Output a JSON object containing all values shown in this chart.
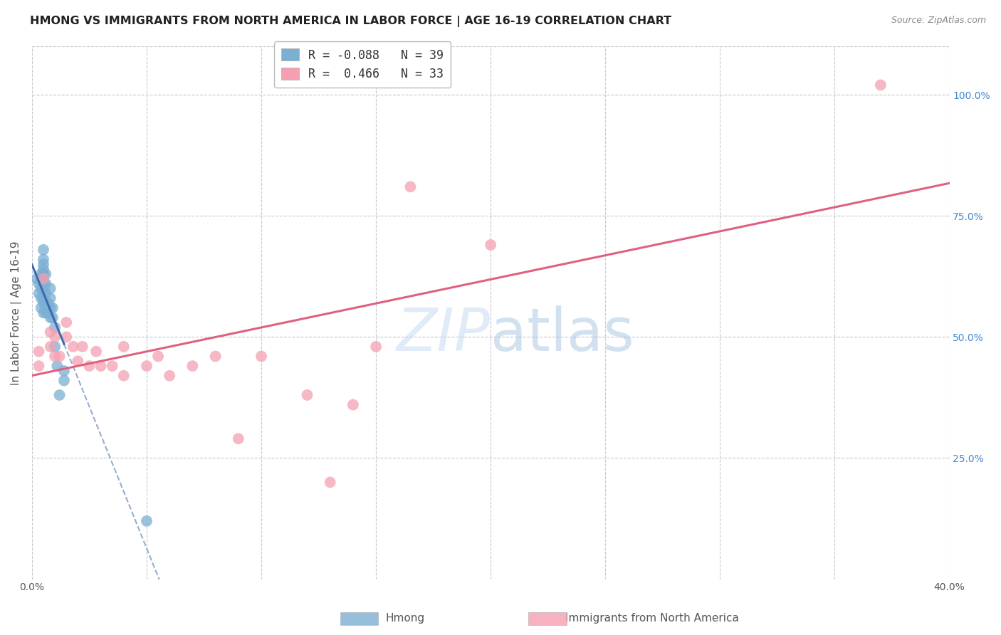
{
  "title": "HMONG VS IMMIGRANTS FROM NORTH AMERICA IN LABOR FORCE | AGE 16-19 CORRELATION CHART",
  "source": "Source: ZipAtlas.com",
  "ylabel": "In Labor Force | Age 16-19",
  "xlabel_left": "Hmong",
  "xlabel_right": "Immigrants from North America",
  "xlim": [
    0.0,
    0.4
  ],
  "ylim": [
    0.0,
    1.1
  ],
  "x_ticks": [
    0.0,
    0.05,
    0.1,
    0.15,
    0.2,
    0.25,
    0.3,
    0.35,
    0.4
  ],
  "x_tick_labels": [
    "0.0%",
    "",
    "",
    "",
    "",
    "",
    "",
    "",
    "40.0%"
  ],
  "y_ticks_right": [
    0.25,
    0.5,
    0.75,
    1.0
  ],
  "y_tick_labels_right": [
    "25.0%",
    "50.0%",
    "75.0%",
    "100.0%"
  ],
  "R_blue": -0.088,
  "N_blue": 39,
  "R_pink": 0.466,
  "N_pink": 33,
  "blue_color": "#7bafd4",
  "pink_color": "#f4a0b0",
  "blue_line_color": "#4169b0",
  "pink_line_color": "#e06080",
  "background_color": "#ffffff",
  "grid_color": "#c8c8d0",
  "blue_points_x": [
    0.002,
    0.003,
    0.003,
    0.004,
    0.004,
    0.004,
    0.004,
    0.004,
    0.005,
    0.005,
    0.005,
    0.005,
    0.005,
    0.005,
    0.005,
    0.005,
    0.005,
    0.005,
    0.005,
    0.006,
    0.006,
    0.006,
    0.006,
    0.006,
    0.007,
    0.007,
    0.008,
    0.008,
    0.008,
    0.008,
    0.009,
    0.009,
    0.01,
    0.01,
    0.011,
    0.012,
    0.014,
    0.014,
    0.05
  ],
  "blue_points_y": [
    0.62,
    0.59,
    0.61,
    0.56,
    0.58,
    0.6,
    0.62,
    0.63,
    0.55,
    0.57,
    0.58,
    0.6,
    0.61,
    0.62,
    0.63,
    0.64,
    0.65,
    0.66,
    0.68,
    0.55,
    0.57,
    0.59,
    0.61,
    0.63,
    0.55,
    0.57,
    0.54,
    0.56,
    0.58,
    0.6,
    0.54,
    0.56,
    0.48,
    0.52,
    0.44,
    0.38,
    0.41,
    0.43,
    0.12
  ],
  "pink_points_x": [
    0.003,
    0.003,
    0.005,
    0.008,
    0.008,
    0.01,
    0.01,
    0.012,
    0.015,
    0.015,
    0.018,
    0.02,
    0.022,
    0.025,
    0.028,
    0.03,
    0.035,
    0.04,
    0.04,
    0.05,
    0.055,
    0.06,
    0.07,
    0.08,
    0.09,
    0.1,
    0.12,
    0.13,
    0.14,
    0.15,
    0.165,
    0.2,
    0.37
  ],
  "pink_points_y": [
    0.44,
    0.47,
    0.62,
    0.48,
    0.51,
    0.46,
    0.5,
    0.46,
    0.5,
    0.53,
    0.48,
    0.45,
    0.48,
    0.44,
    0.47,
    0.44,
    0.44,
    0.42,
    0.48,
    0.44,
    0.46,
    0.42,
    0.44,
    0.46,
    0.29,
    0.46,
    0.38,
    0.2,
    0.36,
    0.48,
    0.81,
    0.69,
    1.02
  ]
}
